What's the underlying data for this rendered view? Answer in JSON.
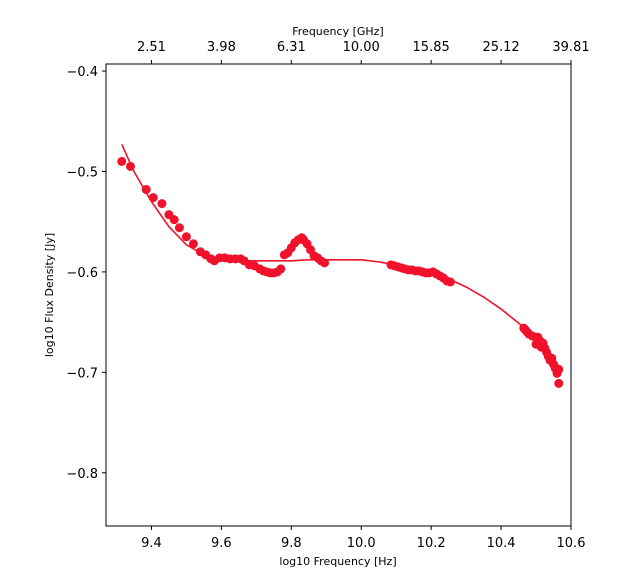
{
  "chart_data": {
    "type": "scatter",
    "xlabel": "log10 Frequency [Hz]",
    "ylabel": "log10 Flux Density [Jy]",
    "top_xlabel": "Frequency [GHz]",
    "xlim": [
      9.27,
      10.6
    ],
    "ylim": [
      -0.853,
      -0.393
    ],
    "x_ticks": [
      9.4,
      9.6,
      9.8,
      10.0,
      10.2,
      10.4,
      10.6
    ],
    "x_tick_labels": [
      "9.4",
      "9.6",
      "9.8",
      "10.0",
      "10.2",
      "10.4",
      "10.6"
    ],
    "y_ticks": [
      -0.4,
      -0.5,
      -0.6,
      -0.7,
      -0.8
    ],
    "y_tick_labels": [
      "−0.4",
      "−0.5",
      "−0.6",
      "−0.7",
      "−0.8"
    ],
    "top_ticks": [
      9.4,
      9.6,
      9.8,
      10.0,
      10.2,
      10.4,
      10.6
    ],
    "top_tick_labels": [
      "2.51",
      "3.98",
      "6.31",
      "10.00",
      "15.85",
      "25.12",
      "39.81"
    ],
    "series_color": "#f0112b",
    "grid": false,
    "legend": "none",
    "series": [
      {
        "kind": "points",
        "x": [
          9.315,
          9.34,
          9.385,
          9.405,
          9.43,
          9.45,
          9.465,
          9.48,
          9.5,
          9.52,
          9.54,
          9.555,
          9.57,
          9.58,
          9.595,
          9.61,
          9.625,
          9.64,
          9.655,
          9.665,
          9.68,
          9.695,
          9.71,
          9.72,
          9.73,
          9.74,
          9.75,
          9.76,
          9.77,
          9.78,
          9.79,
          9.8,
          9.81,
          9.82,
          9.83,
          9.835,
          9.845,
          9.855,
          9.865,
          9.875,
          9.885,
          9.895,
          10.085,
          10.095,
          10.105,
          10.115,
          10.125,
          10.135,
          10.145,
          10.155,
          10.165,
          10.175,
          10.185,
          10.195,
          10.205,
          10.215,
          10.225,
          10.235,
          10.245,
          10.255,
          10.465,
          10.47,
          10.475,
          10.48,
          10.49,
          10.5,
          10.505,
          10.51,
          10.515,
          10.52,
          10.525,
          10.53,
          10.535,
          10.54,
          10.545,
          10.55,
          10.555,
          10.56,
          10.565,
          10.565
        ],
        "y": [
          -0.49,
          -0.495,
          -0.518,
          -0.526,
          -0.532,
          -0.543,
          -0.548,
          -0.556,
          -0.565,
          -0.572,
          -0.58,
          -0.583,
          -0.587,
          -0.589,
          -0.586,
          -0.586,
          -0.587,
          -0.587,
          -0.587,
          -0.589,
          -0.593,
          -0.594,
          -0.597,
          -0.599,
          -0.6,
          -0.601,
          -0.601,
          -0.6,
          -0.597,
          -0.583,
          -0.581,
          -0.576,
          -0.571,
          -0.568,
          -0.566,
          -0.568,
          -0.572,
          -0.578,
          -0.584,
          -0.586,
          -0.589,
          -0.591,
          -0.593,
          -0.594,
          -0.595,
          -0.596,
          -0.597,
          -0.598,
          -0.598,
          -0.599,
          -0.599,
          -0.6,
          -0.601,
          -0.601,
          -0.6,
          -0.602,
          -0.604,
          -0.606,
          -0.609,
          -0.61,
          -0.656,
          -0.658,
          -0.66,
          -0.662,
          -0.664,
          -0.672,
          -0.665,
          -0.668,
          -0.675,
          -0.671,
          -0.676,
          -0.68,
          -0.684,
          -0.688,
          -0.686,
          -0.692,
          -0.696,
          -0.701,
          -0.697,
          -0.711
        ]
      },
      {
        "kind": "fit-line",
        "x": [
          9.315,
          9.35,
          9.4,
          9.45,
          9.5,
          9.55,
          9.6,
          9.65,
          9.7,
          9.75,
          9.8,
          9.85,
          9.9,
          9.95,
          10.0,
          10.05,
          10.1,
          10.15,
          10.2,
          10.25,
          10.3,
          10.35,
          10.4,
          10.45,
          10.5,
          10.55,
          10.565
        ],
        "y": [
          -0.473,
          -0.5,
          -0.53,
          -0.555,
          -0.573,
          -0.583,
          -0.587,
          -0.589,
          -0.589,
          -0.589,
          -0.589,
          -0.588,
          -0.588,
          -0.588,
          -0.588,
          -0.59,
          -0.593,
          -0.597,
          -0.601,
          -0.607,
          -0.615,
          -0.625,
          -0.637,
          -0.651,
          -0.665,
          -0.686,
          -0.694
        ]
      }
    ]
  }
}
